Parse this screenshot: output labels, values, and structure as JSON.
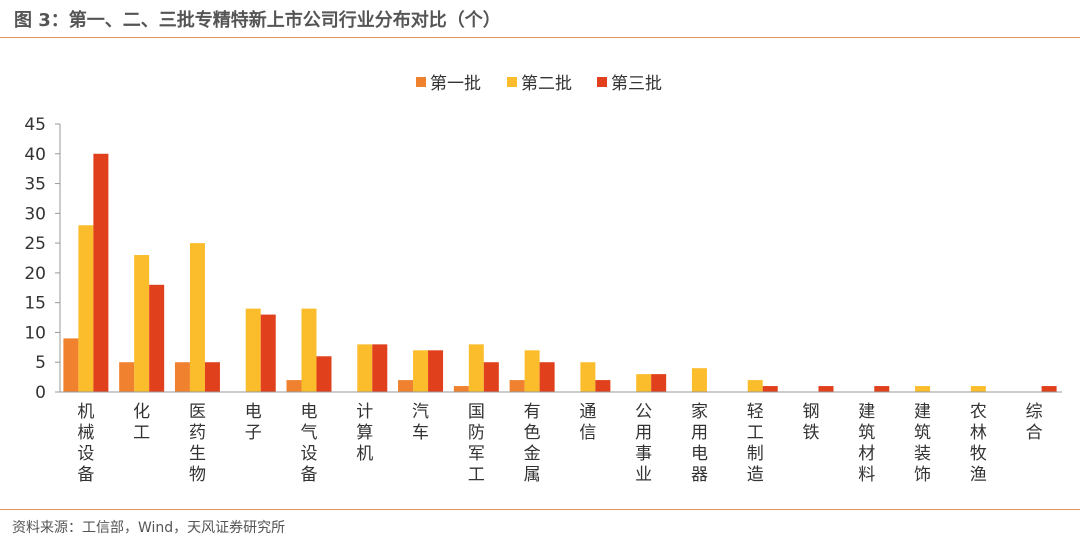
{
  "figure": {
    "title": "图 3：第一、二、三批专精特新上市公司行业分布对比（个）",
    "source": "资料来源：工信部，Wind，天风证券研究所"
  },
  "chart_data": {
    "type": "bar",
    "categories": [
      "机械设备",
      "化工",
      "医药生物",
      "电子",
      "电气设备",
      "计算机",
      "汽车",
      "国防军工",
      "有色金属",
      "通信",
      "公用事业",
      "家用电器",
      "轻工制造",
      "钢铁",
      "建筑材料",
      "建筑装饰",
      "农林牧渔",
      "综合"
    ],
    "series": [
      {
        "name": "第一批",
        "color": "#f0822f",
        "values": [
          9,
          5,
          5,
          0,
          2,
          0,
          2,
          1,
          2,
          0,
          0,
          0,
          0,
          0,
          0,
          0,
          0,
          0
        ]
      },
      {
        "name": "第二批",
        "color": "#fbbd2c",
        "values": [
          28,
          23,
          25,
          14,
          14,
          8,
          7,
          8,
          7,
          5,
          3,
          4,
          2,
          0,
          0,
          1,
          1,
          0
        ]
      },
      {
        "name": "第三批",
        "color": "#e0401c",
        "values": [
          40,
          18,
          5,
          13,
          6,
          8,
          7,
          5,
          5,
          2,
          3,
          0,
          1,
          1,
          1,
          0,
          0,
          1
        ]
      }
    ],
    "yticks": [
      0,
      5,
      10,
      15,
      20,
      25,
      30,
      35,
      40,
      45
    ],
    "ylim": [
      0,
      45
    ],
    "legend_position": "top-center",
    "grid": false
  }
}
